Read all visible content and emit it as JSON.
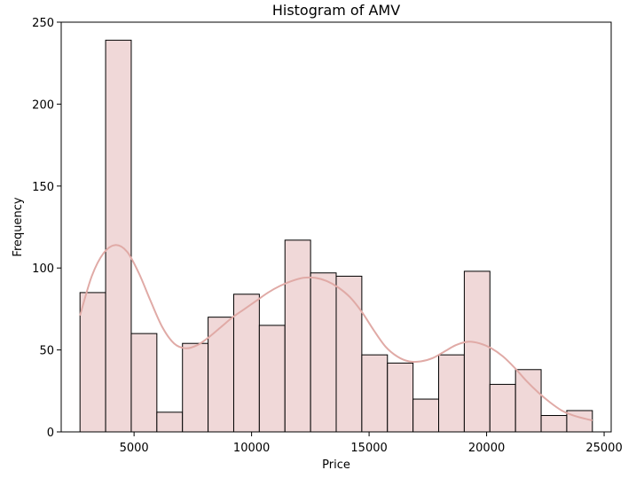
{
  "chart_data": {
    "type": "bar",
    "title": "Histogram of AMV",
    "xlabel": "Price",
    "ylabel": "Frequency",
    "xlim": [
      1900,
      25300
    ],
    "ylim": [
      0,
      250
    ],
    "xticks": [
      5000,
      10000,
      15000,
      20000,
      25000
    ],
    "yticks": [
      0,
      50,
      100,
      150,
      200,
      250
    ],
    "bin_edges": [
      2700,
      3790,
      4880,
      5970,
      7060,
      8150,
      9240,
      10330,
      11420,
      12510,
      13600,
      14690,
      15780,
      16870,
      17960,
      19050,
      20140,
      21230,
      22320,
      23410,
      24500
    ],
    "counts": [
      85,
      239,
      60,
      12,
      54,
      70,
      84,
      65,
      117,
      97,
      95,
      47,
      42,
      20,
      47,
      98,
      29,
      38,
      10,
      13
    ],
    "kde": {
      "x": [
        2700,
        3200,
        3700,
        4200,
        4700,
        5200,
        5700,
        6200,
        6700,
        7200,
        7700,
        8200,
        8700,
        9200,
        9700,
        10200,
        10700,
        11200,
        11700,
        12200,
        12700,
        13200,
        13700,
        14200,
        14700,
        15200,
        15700,
        16200,
        16700,
        17200,
        17700,
        18200,
        18700,
        19200,
        19700,
        20200,
        20700,
        21200,
        21700,
        22200,
        22700,
        23200,
        23700,
        24200,
        24500
      ],
      "y": [
        71,
        95,
        109,
        114,
        110,
        97,
        80,
        64,
        54,
        51,
        53,
        58,
        64,
        70,
        75,
        80,
        85,
        89,
        92,
        94,
        94,
        92,
        88,
        82,
        73,
        62,
        52,
        46,
        43,
        43,
        45,
        49,
        53,
        55,
        54,
        51,
        46,
        39,
        31,
        24,
        18,
        13,
        10,
        8,
        7
      ]
    },
    "colors": {
      "bar_fill": "#f0d8d8",
      "bar_edge": "#000000",
      "kde_line": "#e0aaa6"
    },
    "grid": false,
    "legend": "none"
  }
}
